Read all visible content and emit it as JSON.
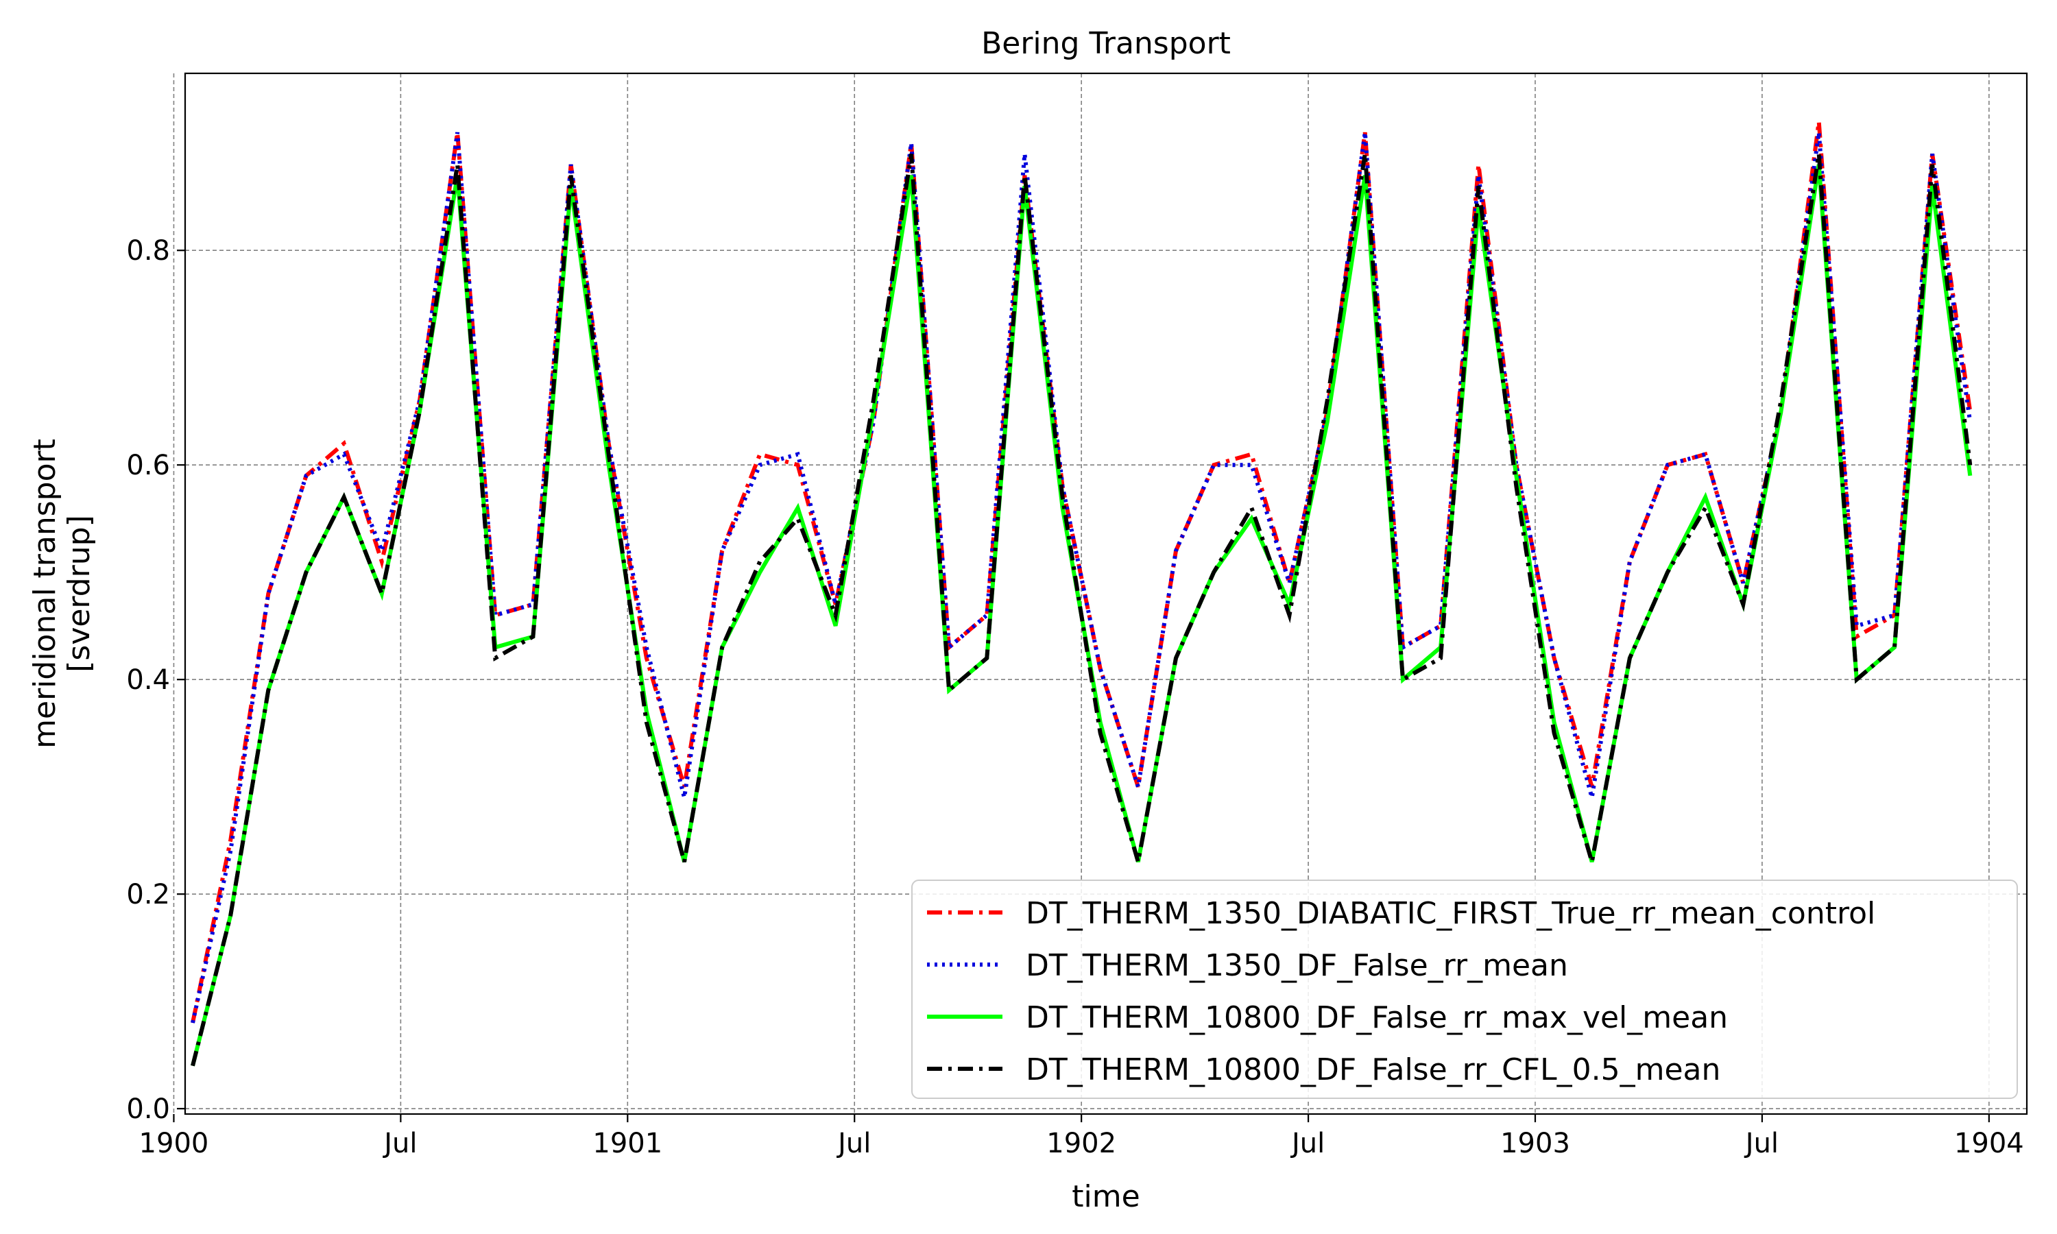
{
  "chart_data": {
    "type": "line",
    "title": "Bering Transport",
    "xlabel": "time",
    "ylabel_lines": [
      "meridional transport",
      "[sverdrup]"
    ],
    "xlim": [
      0.3,
      49.0
    ],
    "ylim": [
      -0.005,
      0.965
    ],
    "x_ticks": [
      {
        "pos": 0,
        "label": "1900"
      },
      {
        "pos": 6,
        "label": "Jul"
      },
      {
        "pos": 12,
        "label": "1901"
      },
      {
        "pos": 18,
        "label": "Jul"
      },
      {
        "pos": 24,
        "label": "1902"
      },
      {
        "pos": 30,
        "label": "Jul"
      },
      {
        "pos": 36,
        "label": "1903"
      },
      {
        "pos": 42,
        "label": "Jul"
      },
      {
        "pos": 48,
        "label": "1904"
      }
    ],
    "y_ticks": [
      {
        "value": 0.0,
        "label": "0.0"
      },
      {
        "value": 0.2,
        "label": "0.2"
      },
      {
        "value": 0.4,
        "label": "0.4"
      },
      {
        "value": 0.6,
        "label": "0.6"
      },
      {
        "value": 0.8,
        "label": "0.8"
      }
    ],
    "grid": true,
    "legend_position": "bottom-right",
    "x": [
      0.5,
      1.5,
      2.5,
      3.5,
      4.5,
      5.5,
      6.5,
      7.5,
      8.5,
      9.5,
      10.5,
      11.5,
      12.5,
      13.5,
      14.5,
      15.5,
      16.5,
      17.5,
      18.5,
      19.5,
      20.5,
      21.5,
      22.5,
      23.5,
      24.5,
      25.5,
      26.5,
      27.5,
      28.5,
      29.5,
      30.5,
      31.5,
      32.5,
      33.5,
      34.5,
      35.5,
      36.5,
      37.5,
      38.5,
      39.5,
      40.5,
      41.5,
      42.5,
      43.5,
      44.5,
      45.5,
      46.5,
      47.5
    ],
    "series": [
      {
        "name": "DT_THERM_1350_DIABATIC_FIRST_True_rr_mean_control",
        "color": "#ff0000",
        "dash": "22 9 5 9",
        "values": [
          0.08,
          0.25,
          0.48,
          0.59,
          0.62,
          0.51,
          0.66,
          0.91,
          0.46,
          0.47,
          0.88,
          0.62,
          0.42,
          0.3,
          0.52,
          0.61,
          0.6,
          0.47,
          0.64,
          0.9,
          0.43,
          0.46,
          0.87,
          0.58,
          0.41,
          0.3,
          0.52,
          0.6,
          0.61,
          0.49,
          0.65,
          0.91,
          0.43,
          0.45,
          0.88,
          0.6,
          0.42,
          0.3,
          0.51,
          0.6,
          0.61,
          0.49,
          0.65,
          0.92,
          0.44,
          0.46,
          0.89,
          0.65
        ]
      },
      {
        "name": "DT_THERM_1350_DF_False_rr_mean",
        "color": "#0000dd",
        "dash": "4 7",
        "values": [
          0.08,
          0.24,
          0.48,
          0.59,
          0.61,
          0.52,
          0.66,
          0.91,
          0.46,
          0.47,
          0.88,
          0.62,
          0.43,
          0.29,
          0.52,
          0.6,
          0.61,
          0.47,
          0.64,
          0.9,
          0.43,
          0.46,
          0.89,
          0.58,
          0.41,
          0.3,
          0.52,
          0.6,
          0.6,
          0.49,
          0.65,
          0.91,
          0.43,
          0.45,
          0.87,
          0.6,
          0.42,
          0.29,
          0.51,
          0.6,
          0.61,
          0.49,
          0.65,
          0.91,
          0.45,
          0.46,
          0.89,
          0.64
        ]
      },
      {
        "name": "DT_THERM_10800_DF_False_rr_max_vel_mean",
        "color": "#00ff00",
        "dash": "",
        "values": [
          0.04,
          0.18,
          0.39,
          0.5,
          0.57,
          0.48,
          0.65,
          0.87,
          0.43,
          0.44,
          0.86,
          0.6,
          0.37,
          0.23,
          0.43,
          0.5,
          0.56,
          0.45,
          0.65,
          0.87,
          0.39,
          0.42,
          0.86,
          0.56,
          0.36,
          0.23,
          0.42,
          0.5,
          0.55,
          0.47,
          0.64,
          0.87,
          0.4,
          0.43,
          0.84,
          0.59,
          0.36,
          0.23,
          0.42,
          0.5,
          0.57,
          0.47,
          0.65,
          0.88,
          0.4,
          0.43,
          0.86,
          0.59
        ]
      },
      {
        "name": "DT_THERM_10800_DF_False_rr_CFL_0.5_mean",
        "color": "#000000",
        "dash": "22 9 5 9",
        "values": [
          0.04,
          0.18,
          0.39,
          0.5,
          0.57,
          0.48,
          0.65,
          0.88,
          0.42,
          0.44,
          0.87,
          0.61,
          0.36,
          0.23,
          0.43,
          0.51,
          0.55,
          0.46,
          0.66,
          0.89,
          0.39,
          0.42,
          0.87,
          0.57,
          0.35,
          0.23,
          0.42,
          0.5,
          0.56,
          0.46,
          0.66,
          0.89,
          0.4,
          0.42,
          0.86,
          0.58,
          0.35,
          0.23,
          0.42,
          0.5,
          0.56,
          0.47,
          0.66,
          0.89,
          0.4,
          0.43,
          0.88,
          0.6
        ]
      }
    ]
  }
}
